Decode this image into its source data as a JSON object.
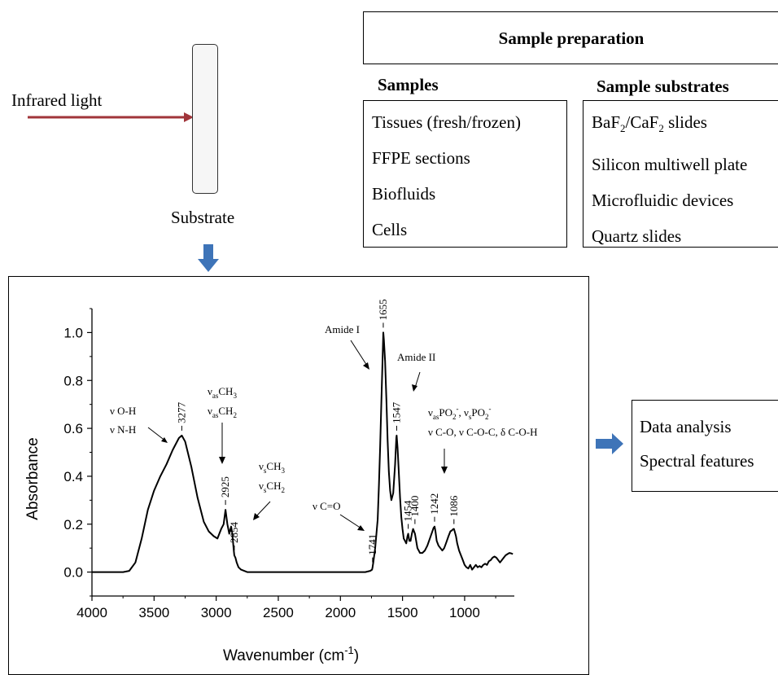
{
  "illumination": {
    "light_label": "Infrared light",
    "substrate_label": "Substrate"
  },
  "sample_preparation": {
    "title": "Sample preparation",
    "samples_heading": "Samples",
    "samples": [
      "Tissues (fresh/frozen)",
      "FFPE sections",
      "Biofluids",
      "Cells"
    ],
    "substrates_heading": "Sample substrates",
    "substrates": [
      {
        "base": "BaF",
        "sub1": "2",
        "mid": "/CaF",
        "sub2": "2",
        "rest": " slides"
      },
      {
        "text": "Silicon multiwell plate"
      },
      {
        "text": "Microfluidic devices"
      },
      {
        "text": "Quartz slides"
      }
    ]
  },
  "analysis": {
    "line1": "Data analysis",
    "line2": "Spectral features"
  },
  "colors": {
    "light_arrow": "#a0353a",
    "flow_arrow": "#3e74b8",
    "spectrum": "#000000"
  },
  "chart_data": {
    "type": "line",
    "xlabel": "Wavenumber (cm",
    "xlabel_sup": "-1",
    "xlabel_close": ")",
    "ylabel": "Absorbance",
    "xlim": [
      4000,
      600
    ],
    "ylim": [
      -0.1,
      1.1
    ],
    "x_ticks": [
      4000,
      3500,
      3000,
      2500,
      2000,
      1500,
      1000
    ],
    "y_ticks": [
      "0.0",
      "0.2",
      "0.4",
      "0.6",
      "0.8",
      "1.0"
    ],
    "y_tick_values": [
      0.0,
      0.2,
      0.4,
      0.6,
      0.8,
      1.0
    ],
    "series": [
      {
        "x": [
          4000,
          3750,
          3700,
          3650,
          3600,
          3550,
          3500,
          3450,
          3400,
          3350,
          3300,
          3277,
          3250,
          3200,
          3150,
          3100,
          3060,
          3020,
          2990,
          2960,
          2940,
          2925,
          2910,
          2895,
          2880,
          2870,
          2860,
          2854,
          2845,
          2835,
          2820,
          2800,
          2750,
          2700,
          2500,
          2000,
          1800,
          1760,
          1745,
          1741,
          1735,
          1720,
          1700,
          1690,
          1680,
          1670,
          1660,
          1655,
          1650,
          1640,
          1630,
          1620,
          1610,
          1600,
          1590,
          1575,
          1560,
          1550,
          1547,
          1540,
          1530,
          1520,
          1510,
          1500,
          1490,
          1480,
          1470,
          1460,
          1454,
          1445,
          1435,
          1425,
          1415,
          1400,
          1390,
          1380,
          1370,
          1360,
          1340,
          1320,
          1300,
          1280,
          1260,
          1250,
          1242,
          1235,
          1225,
          1210,
          1195,
          1180,
          1165,
          1150,
          1130,
          1115,
          1100,
          1090,
          1086,
          1080,
          1070,
          1060,
          1045,
          1030,
          1015,
          1000,
          985,
          970,
          955,
          940,
          925,
          910,
          895,
          880,
          865,
          850,
          835,
          820,
          805,
          790,
          775,
          760,
          745,
          730,
          715,
          700,
          685,
          670,
          655,
          640,
          625,
          612
        ],
        "y": [
          0.0,
          0.0,
          0.005,
          0.04,
          0.14,
          0.26,
          0.34,
          0.4,
          0.45,
          0.51,
          0.56,
          0.57,
          0.545,
          0.44,
          0.31,
          0.21,
          0.17,
          0.15,
          0.14,
          0.18,
          0.2,
          0.26,
          0.2,
          0.16,
          0.19,
          0.16,
          0.1,
          0.07,
          0.06,
          0.04,
          0.02,
          0.01,
          0.0,
          0.0,
          0.0,
          0.0,
          0.0,
          0.005,
          0.01,
          0.02,
          0.04,
          0.1,
          0.22,
          0.36,
          0.52,
          0.72,
          0.9,
          1.0,
          0.97,
          0.88,
          0.72,
          0.55,
          0.42,
          0.34,
          0.3,
          0.33,
          0.45,
          0.56,
          0.57,
          0.52,
          0.42,
          0.31,
          0.23,
          0.18,
          0.14,
          0.13,
          0.12,
          0.15,
          0.16,
          0.13,
          0.13,
          0.16,
          0.18,
          0.16,
          0.13,
          0.1,
          0.09,
          0.08,
          0.08,
          0.09,
          0.11,
          0.14,
          0.17,
          0.185,
          0.19,
          0.17,
          0.13,
          0.11,
          0.1,
          0.09,
          0.1,
          0.12,
          0.15,
          0.17,
          0.175,
          0.18,
          0.18,
          0.17,
          0.15,
          0.12,
          0.09,
          0.07,
          0.05,
          0.03,
          0.02,
          0.015,
          0.03,
          0.01,
          0.02,
          0.03,
          0.02,
          0.025,
          0.02,
          0.03,
          0.035,
          0.03,
          0.045,
          0.05,
          0.06,
          0.065,
          0.06,
          0.05,
          0.04,
          0.05,
          0.06,
          0.07,
          0.075,
          0.08,
          0.078,
          0.075
        ]
      }
    ],
    "peak_labels": [
      {
        "x": 3277,
        "y": 0.57,
        "label": "3277"
      },
      {
        "x": 2925,
        "y": 0.26,
        "label": "2925"
      },
      {
        "x": 2854,
        "y": 0.07,
        "label": "2854"
      },
      {
        "x": 1741,
        "y": 0.02,
        "label": "1741"
      },
      {
        "x": 1655,
        "y": 1.0,
        "label": "1655"
      },
      {
        "x": 1547,
        "y": 0.57,
        "label": "1547"
      },
      {
        "x": 1454,
        "y": 0.16,
        "label": "1454"
      },
      {
        "x": 1400,
        "y": 0.18,
        "label": "1400"
      },
      {
        "x": 1242,
        "y": 0.19,
        "label": "1242"
      },
      {
        "x": 1086,
        "y": 0.18,
        "label": "1086"
      }
    ],
    "annotations": {
      "oh": "ν O-H",
      "nh": "ν N-H",
      "nu_as": "ν",
      "as_sub": "as",
      "ch3": "CH",
      "three": "3",
      "ch2": "CH",
      "two": "2",
      "nu_s": "ν",
      "s_sub": "s",
      "co": "ν C=O",
      "amide1": "Amide I",
      "amide2": "Amide II",
      "po2_as_nu": "ν",
      "po2_as_sub": "as",
      "po2": "PO",
      "po2_sub": "2",
      "po2_sup": "-",
      "po2_sep": ", ",
      "po2_s_nu": "ν",
      "po2_s_sub": "s",
      "co_group": "ν C-O, ν C-O-C, δ C-O-H"
    }
  }
}
